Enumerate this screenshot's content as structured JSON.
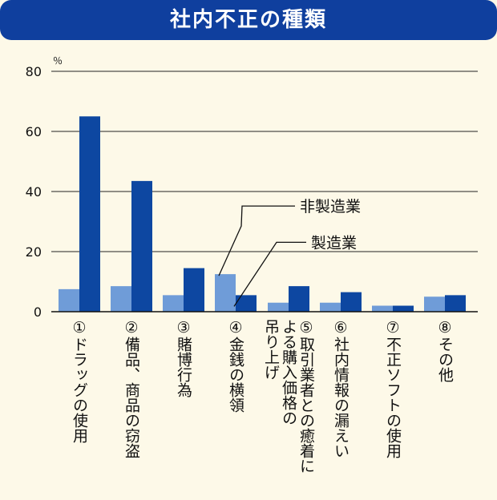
{
  "title": "社内不正の種類",
  "chart_data": {
    "type": "bar",
    "title": "社内不正の種類",
    "ylabel": "％",
    "ylim": [
      0,
      80
    ],
    "yticks": [
      "0",
      "20",
      "40",
      "60",
      "80"
    ],
    "categories": [
      "①ドラッグの使用",
      "②備品、商品の窃盗",
      "③賭博行為",
      "④金銭の横領",
      "⑤取引業者との癒着による購入価格の吊り上げ",
      "⑥社内情報の漏えい",
      "⑦不正ソフトの使用",
      "⑧その他"
    ],
    "category_lines": [
      [
        "①ドラッグの使用"
      ],
      [
        "②備品、商品の窃盗"
      ],
      [
        "③賭博行為"
      ],
      [
        "④金銭の横領"
      ],
      [
        "⑤取引業者との癒着に",
        "よる購入価格の",
        "吊り上げ"
      ],
      [
        "⑥社内情報の漏えい"
      ],
      [
        "⑦不正ソフトの使用"
      ],
      [
        "⑧その他"
      ]
    ],
    "series": [
      {
        "name": "非製造業",
        "values": [
          7.5,
          8.5,
          5.5,
          12.5,
          3,
          3,
          2,
          5
        ],
        "color": "#6f9cd8"
      },
      {
        "name": "製造業",
        "values": [
          65,
          43.5,
          14.5,
          5.5,
          8.5,
          6.5,
          2,
          5.5
        ],
        "color": "#0d47a1"
      }
    ],
    "grid": true,
    "legend": "callout"
  }
}
